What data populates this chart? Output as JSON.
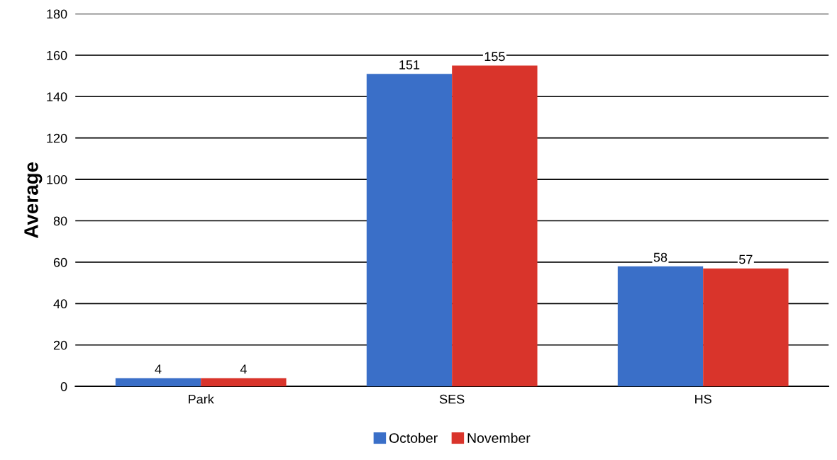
{
  "chart_data": {
    "type": "bar",
    "ylabel": "Average",
    "categories": [
      "Park",
      "SES",
      "HS"
    ],
    "series": [
      {
        "name": "October",
        "color": "#3a6fc8",
        "values": [
          4,
          151,
          58
        ]
      },
      {
        "name": "November",
        "color": "#d9342b",
        "values": [
          4,
          155,
          57
        ]
      }
    ],
    "ylim": [
      0,
      180
    ],
    "yticks": [
      0,
      20,
      40,
      60,
      80,
      100,
      120,
      140,
      160,
      180
    ],
    "grid": "y",
    "legend": "bottom",
    "data_labels": true
  }
}
